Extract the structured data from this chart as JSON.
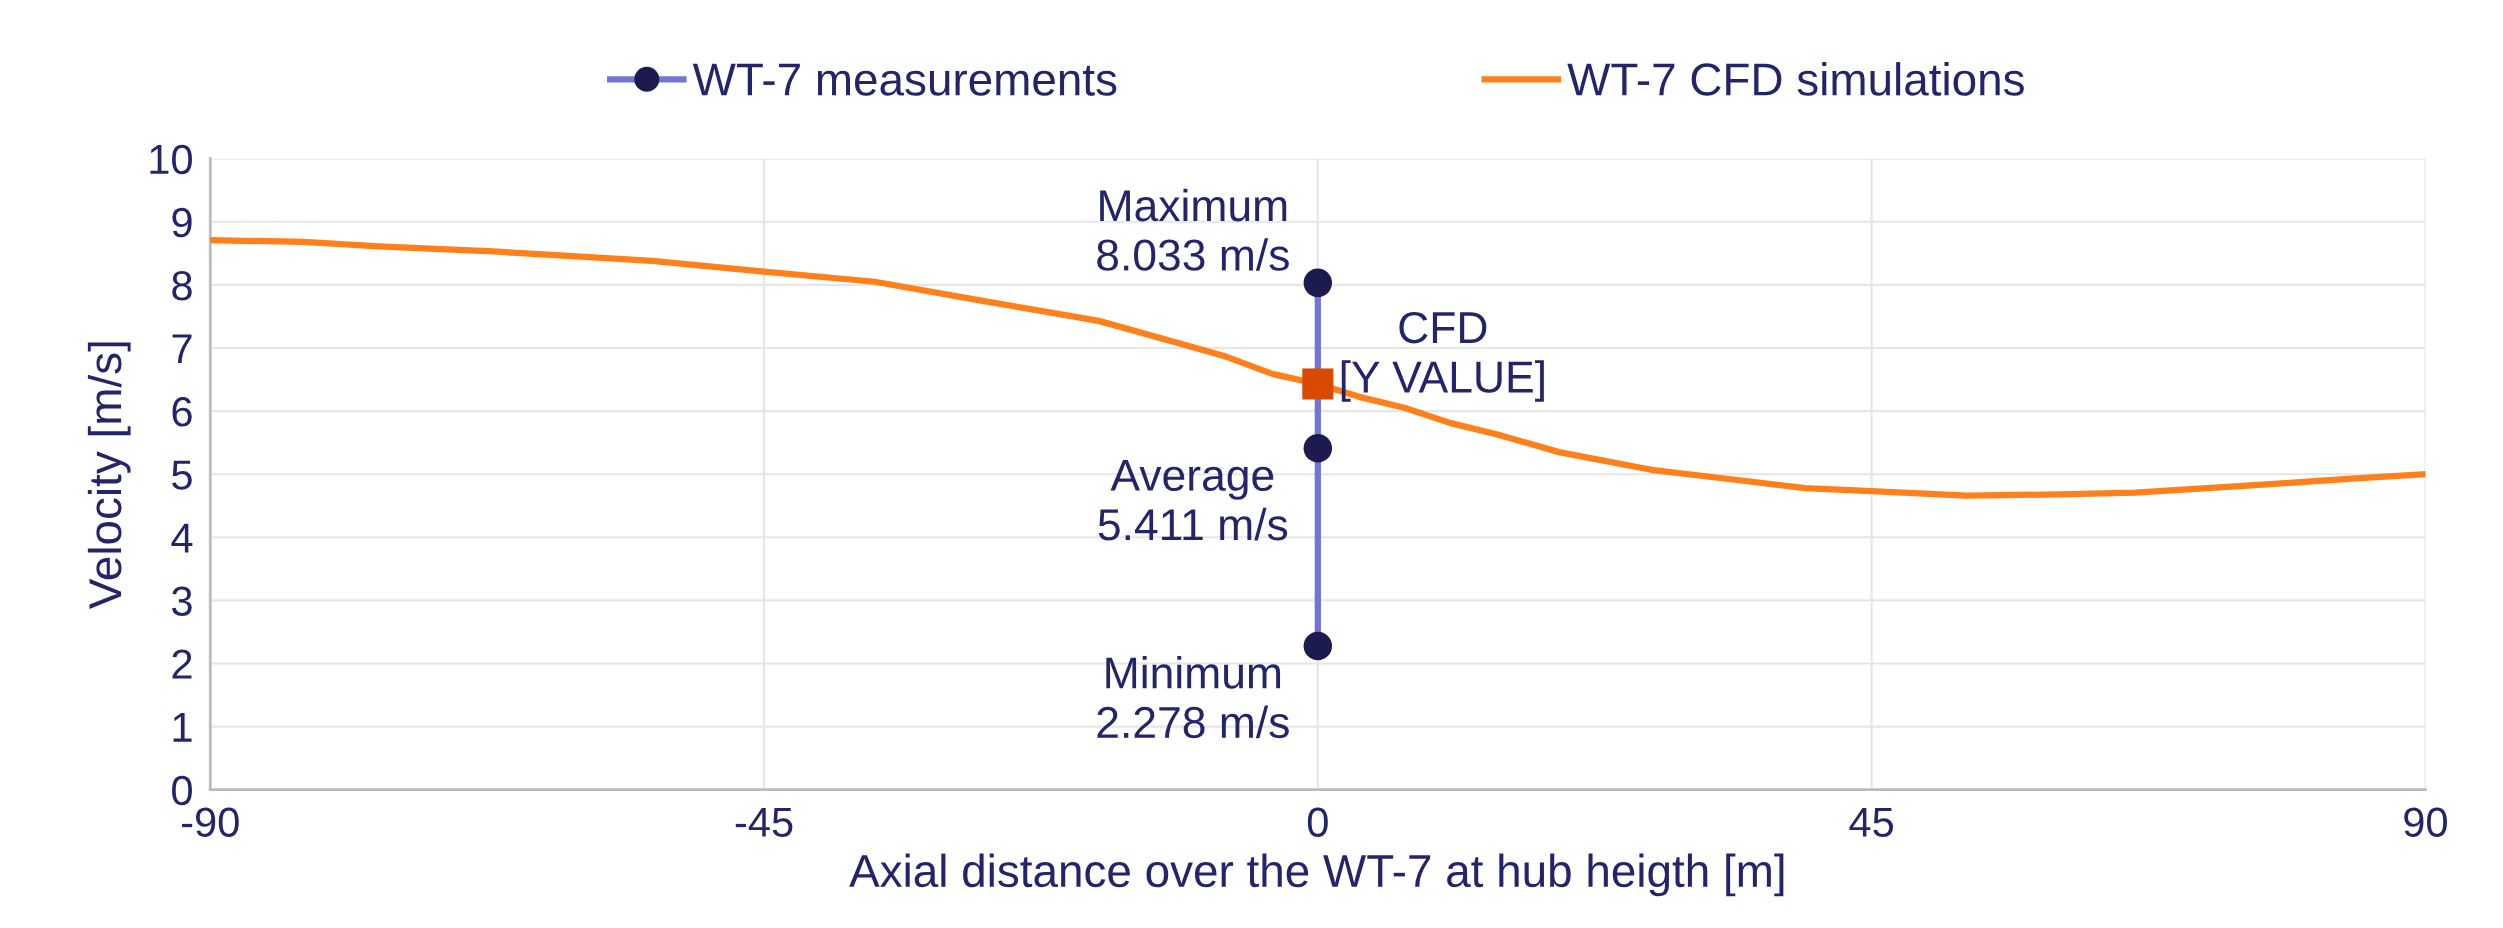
{
  "chart_data": {
    "type": "line",
    "xlabel": "Axial distance over the WT-7 at hub heigth [m]",
    "ylabel": "Velocity [m/s]",
    "xlim": [
      -90,
      90
    ],
    "xticks": [
      -90,
      -45,
      0,
      45,
      90
    ],
    "ylim": [
      0,
      10
    ],
    "yticks": [
      0,
      1,
      2,
      3,
      4,
      5,
      6,
      7,
      8,
      9,
      10
    ],
    "grid": true,
    "legend": "top",
    "series": [
      {
        "name": "WT-7 measurements",
        "marker": "circle",
        "color": "#7474d4",
        "colors": [
          "#1b1b4d",
          "#1b1b4d",
          "#1b1b4d"
        ],
        "x": [
          0,
          0,
          0
        ],
        "values": [
          2.278,
          5.411,
          8.033
        ],
        "value_labels": [
          "Minimum\n2.278 m/s",
          "Average\n5.411 m/s",
          "Maximum\n8.033 m/s"
        ]
      },
      {
        "name": "WT-7 CFD simulations",
        "marker": "none",
        "color": "#ff7f1a",
        "x": [
          -90,
          -82.4,
          -76.3,
          -67.0,
          -60.9,
          -54.1,
          -45,
          -36.0,
          -27.0,
          -17.8,
          -11.0,
          -7.4,
          -3.7,
          0,
          3.3,
          7.1,
          10.8,
          14.6,
          19.6,
          27.1,
          32.7,
          39.6,
          45,
          52.7,
          60.2,
          66.4,
          77.1,
          84,
          90
        ],
        "values": [
          8.71,
          8.68,
          8.61,
          8.53,
          8.46,
          8.38,
          8.21,
          8.05,
          7.74,
          7.43,
          7.06,
          6.86,
          6.59,
          6.43,
          6.23,
          6.05,
          5.81,
          5.63,
          5.35,
          5.07,
          4.94,
          4.78,
          4.73,
          4.66,
          4.68,
          4.71,
          4.84,
          4.93,
          5.0
        ]
      },
      {
        "type": "scatter",
        "marker": "square",
        "color": "#d94a00",
        "x": [
          0
        ],
        "values": [
          6.43
        ],
        "value_labels": [
          "CFD\n[Y VALUE]"
        ]
      }
    ]
  }
}
